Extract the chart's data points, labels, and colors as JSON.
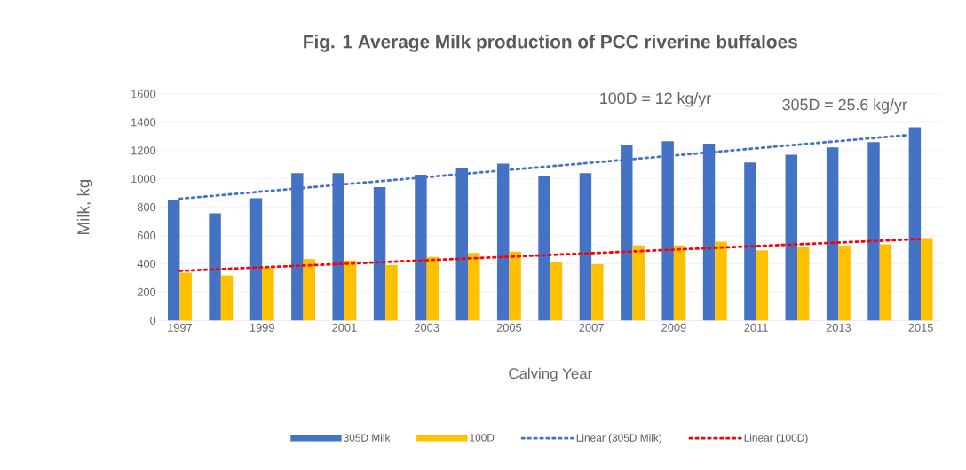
{
  "chart_data": {
    "type": "bar",
    "title": "Fig. 1 Average Milk production of PCC riverine buffaloes",
    "xlabel": "Calving Year",
    "ylabel": "Milk, kg",
    "x": [
      1997,
      1998,
      1999,
      2000,
      2001,
      2002,
      2003,
      2004,
      2005,
      2006,
      2007,
      2008,
      2009,
      2010,
      2011,
      2012,
      2013,
      2014,
      2015
    ],
    "series": [
      {
        "name": "305D Milk",
        "color": "#4472c4",
        "values": [
          848,
          757,
          863,
          1040,
          1040,
          942,
          1029,
          1075,
          1108,
          1023,
          1040,
          1241,
          1266,
          1249,
          1116,
          1170,
          1222,
          1260,
          1364
        ]
      },
      {
        "name": "100D",
        "color": "#ffc000",
        "values": [
          337,
          318,
          374,
          432,
          424,
          391,
          449,
          476,
          486,
          414,
          397,
          530,
          530,
          557,
          495,
          522,
          530,
          538,
          582
        ]
      },
      {
        "name": "Linear (305D Milk)",
        "type": "line",
        "color": "#4472c4",
        "line_style": "dotted",
        "x": [
          1997,
          2014.7
        ],
        "values": [
          860,
          1310
        ]
      },
      {
        "name": "Linear (100D)",
        "type": "line",
        "color": "#ff0000",
        "line_style": "dotted",
        "x": [
          1997,
          2015
        ],
        "values": [
          350,
          575
        ]
      }
    ],
    "xlim": [
      1996.5,
      2015.5
    ],
    "xticks": [
      1997,
      1999,
      2001,
      2003,
      2005,
      2007,
      2009,
      2011,
      2013,
      2015
    ],
    "ylim": [
      0,
      1600
    ],
    "yticks": [
      0,
      200,
      400,
      600,
      800,
      1000,
      1200,
      1400,
      1600
    ],
    "annotations": [
      "100D = 12 kg/yr",
      "305D = 25.6 kg/yr"
    ],
    "grid": "y",
    "legend": "bottom"
  }
}
